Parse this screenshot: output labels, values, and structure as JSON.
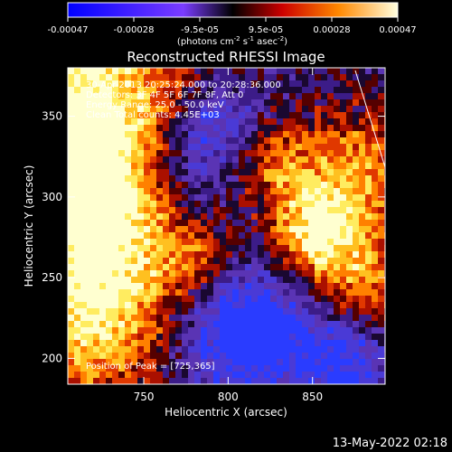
{
  "colorbar": {
    "ticks": [
      "-0.00047",
      "-0.00028",
      "-9.5e-05",
      "9.5e-05",
      "0.00028",
      "0.00047"
    ],
    "unit_label": "(photons cm",
    "unit_label_full": "(photons cm⁻² s⁻¹ asec⁻²)",
    "range": [
      -0.00047,
      0.00047
    ]
  },
  "chart_data": {
    "type": "heatmap",
    "title": "Reconstructed RHESSI Image",
    "xlabel": "Heliocentric X (arcsec)",
    "ylabel": "Heliocentric Y (arcsec)",
    "xlim": [
      705,
      893
    ],
    "ylim": [
      184,
      380
    ],
    "xticks": [
      750,
      800,
      850
    ],
    "yticks": [
      200,
      250,
      300,
      350
    ],
    "annotations": [
      "30-Apr-2013 20:25:24.000 to 20:28:36.000",
      "Detectors: 3F 4F 5F 6F 7F 8F, Att 0",
      "Energy Range: 25.0 - 50.0 keV",
      "Clean    Total counts: 4.45E+03",
      "Position of Peak = [725,365]"
    ],
    "peak": [
      725,
      365
    ],
    "description_colormap": "blue (negative) to black to red/yellow/white (positive)"
  },
  "footer": {
    "timestamp": "13-May-2022 02:18"
  },
  "colors": {
    "background": "#000000",
    "text": "#ffffff"
  }
}
